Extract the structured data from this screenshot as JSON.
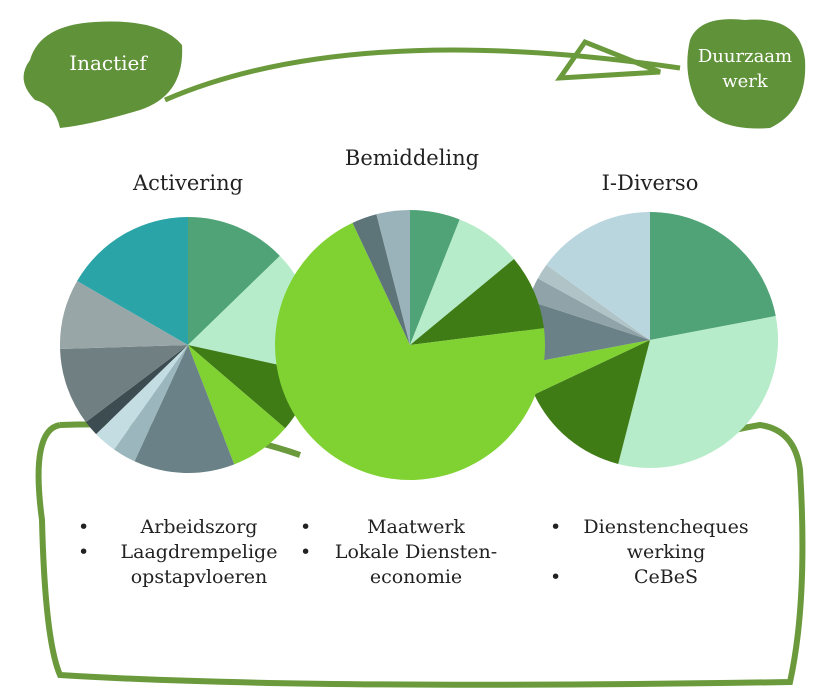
{
  "header": {
    "start": "Inactief",
    "end": [
      "Duurzaam",
      "werk"
    ]
  },
  "pies": [
    {
      "title": "Activering",
      "values": [
        13,
        16,
        8,
        8,
        13,
        3,
        3,
        2,
        10,
        9,
        17
      ],
      "colors": [
        "#4fa377",
        "#b6ecc9",
        "#3f7c16",
        "#80d232",
        "#6a8287",
        "#9bb7bd",
        "#c3dde2",
        "#3c4c50",
        "#6f7f82",
        "#98a6a8",
        "#2ba4a8"
      ]
    },
    {
      "title": "Bemiddeling",
      "values": [
        6,
        8,
        9,
        70,
        3,
        4
      ],
      "colors": [
        "#4fa377",
        "#b6ecc9",
        "#3f7c16",
        "#80d232",
        "#5d7479",
        "#9ab3ba"
      ]
    },
    {
      "title": "I-Diverso",
      "values": [
        22,
        32,
        14,
        4,
        8,
        3,
        2,
        15
      ],
      "colors": [
        "#4fa377",
        "#b6ecc9",
        "#3f7c16",
        "#80d232",
        "#6a8287",
        "#8fa3a8",
        "#b0c4c8",
        "#b9d6df"
      ]
    }
  ],
  "lists": [
    [
      "Arbeidszorg",
      "Laagdrempelige opstapvloeren"
    ],
    [
      "Maatwerk",
      "Lokale Diensten- economie"
    ],
    [
      "Dienstencheques werking",
      "CeBeS"
    ]
  ]
}
